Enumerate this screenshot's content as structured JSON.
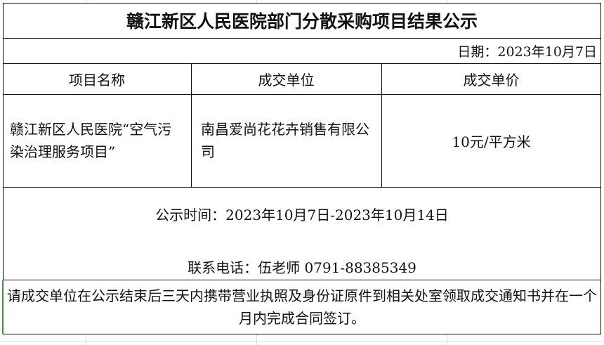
{
  "title": "赣江新区人民医院部门分散采购项目结果公示",
  "date": "日期：2023年10月7日",
  "headers": [
    "项目名称",
    "成交单位",
    "成交单价"
  ],
  "row": {
    "project": "赣江新区人民医院“空气污染治理服务项目”",
    "vendor": "南昌爱尚花花卉销售有限公司",
    "price": "10元/平方米"
  },
  "period": "公示时间：2023年10月7日-2023年10月14日",
  "contact": "联系电话：伍老师 0791-88385349",
  "notice": "请成交单位在公示结束后三天内携带营业执照及身份证原件到相关处室领取成交通知书并在一个月内完成合同签订。"
}
